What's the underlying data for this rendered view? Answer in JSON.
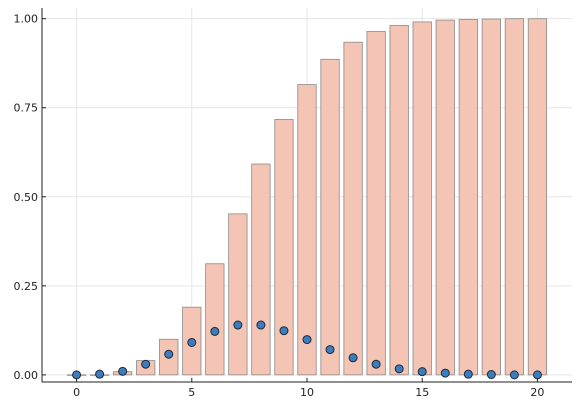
{
  "chart_data": {
    "type": "bar",
    "title": "",
    "xlabel": "",
    "ylabel": "",
    "xlim": [
      -1.5,
      21.5
    ],
    "ylim": [
      -0.02,
      1.03
    ],
    "grid": true,
    "legend": "none",
    "x_ticks": [
      {
        "value": 0,
        "label": "0"
      },
      {
        "value": 5,
        "label": "5"
      },
      {
        "value": 10,
        "label": "10"
      },
      {
        "value": 15,
        "label": "15"
      },
      {
        "value": 20,
        "label": "20"
      }
    ],
    "y_ticks": [
      {
        "value": 0,
        "label": "0.00"
      },
      {
        "value": 0.25,
        "label": "0.25"
      },
      {
        "value": 0.5,
        "label": "0.50"
      },
      {
        "value": 0.75,
        "label": "0.75"
      },
      {
        "value": 1.0,
        "label": "1.00"
      }
    ],
    "x": [
      0,
      1,
      2,
      3,
      4,
      5,
      6,
      7,
      8,
      9,
      10,
      11,
      12,
      13,
      14,
      15,
      16,
      17,
      18,
      19,
      20
    ],
    "series": [
      {
        "type": "bar",
        "color": "#f4c4b4",
        "values": [
          0.0,
          0.0,
          0.009,
          0.04,
          0.1,
          0.19,
          0.312,
          0.452,
          0.592,
          0.717,
          0.815,
          0.886,
          0.934,
          0.964,
          0.981,
          0.991,
          0.996,
          0.998,
          0.999,
          1.0,
          1.0
        ]
      },
      {
        "type": "scatter",
        "color": "#3b7dbd",
        "values": [
          0.0,
          0.002,
          0.01,
          0.03,
          0.058,
          0.091,
          0.122,
          0.14,
          0.14,
          0.124,
          0.099,
          0.071,
          0.048,
          0.03,
          0.017,
          0.009,
          0.005,
          0.002,
          0.001,
          0.0,
          0.0
        ]
      }
    ]
  }
}
